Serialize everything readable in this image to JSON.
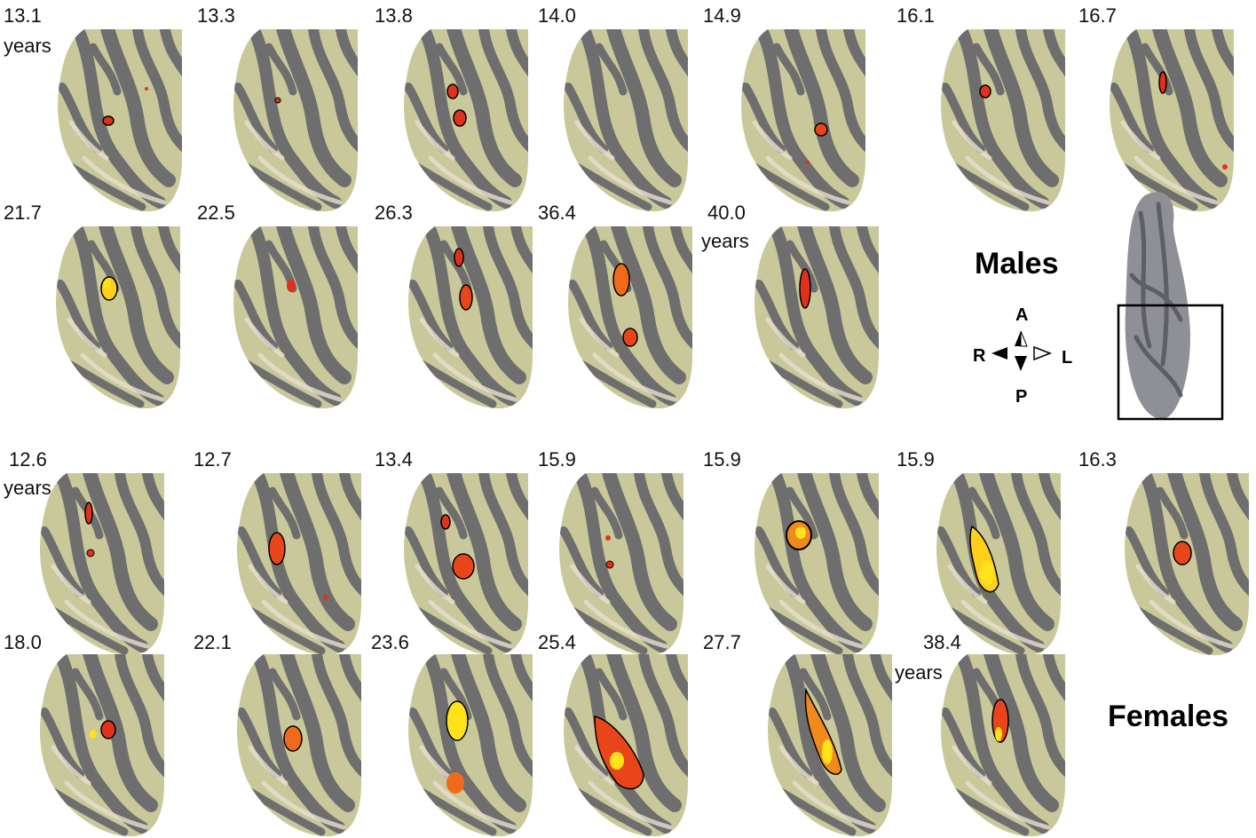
{
  "males": {
    "label": "Males",
    "ages": [
      "13.1",
      "13.3",
      "13.8",
      "14.0",
      "14.9",
      "16.1",
      "16.7",
      "21.7",
      "22.5",
      "26.3",
      "36.4",
      "40.0"
    ],
    "first_unit": "years",
    "last_unit": "years"
  },
  "females": {
    "label": "Females",
    "ages": [
      "12.6",
      "12.7",
      "13.4",
      "15.9",
      "15.9",
      "15.9",
      "16.3",
      "18.0",
      "22.1",
      "23.6",
      "25.4",
      "27.7",
      "38.4"
    ],
    "first_unit": "years",
    "last_unit": "years"
  },
  "orientation": {
    "anterior": "A",
    "posterior": "P",
    "right": "R",
    "left": "L"
  },
  "colors": {
    "gyrus": "#c9c89a",
    "sulcus": "#6e6e6e",
    "activation_low": "#e0301e",
    "activation_high": "#ffe21a"
  }
}
